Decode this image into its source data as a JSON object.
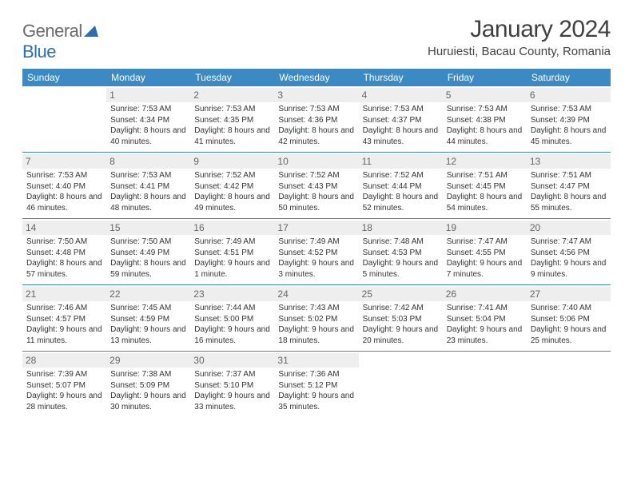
{
  "logo": {
    "part1": "General",
    "part2": "Blue"
  },
  "title": "January 2024",
  "location": "Huruiesti, Bacau County, Romania",
  "colors": {
    "header_bg": "#3b8ac4",
    "header_text": "#ffffff",
    "daynum_bg": "#eeeeee",
    "daynum_text": "#666666",
    "rule": "#3b8ac4"
  },
  "weekdays": [
    "Sunday",
    "Monday",
    "Tuesday",
    "Wednesday",
    "Thursday",
    "Friday",
    "Saturday"
  ],
  "weeks": [
    [
      null,
      {
        "n": "1",
        "sr": "7:53 AM",
        "ss": "4:34 PM",
        "dl": "8 hours and 40 minutes."
      },
      {
        "n": "2",
        "sr": "7:53 AM",
        "ss": "4:35 PM",
        "dl": "8 hours and 41 minutes."
      },
      {
        "n": "3",
        "sr": "7:53 AM",
        "ss": "4:36 PM",
        "dl": "8 hours and 42 minutes."
      },
      {
        "n": "4",
        "sr": "7:53 AM",
        "ss": "4:37 PM",
        "dl": "8 hours and 43 minutes."
      },
      {
        "n": "5",
        "sr": "7:53 AM",
        "ss": "4:38 PM",
        "dl": "8 hours and 44 minutes."
      },
      {
        "n": "6",
        "sr": "7:53 AM",
        "ss": "4:39 PM",
        "dl": "8 hours and 45 minutes."
      }
    ],
    [
      {
        "n": "7",
        "sr": "7:53 AM",
        "ss": "4:40 PM",
        "dl": "8 hours and 46 minutes."
      },
      {
        "n": "8",
        "sr": "7:53 AM",
        "ss": "4:41 PM",
        "dl": "8 hours and 48 minutes."
      },
      {
        "n": "9",
        "sr": "7:52 AM",
        "ss": "4:42 PM",
        "dl": "8 hours and 49 minutes."
      },
      {
        "n": "10",
        "sr": "7:52 AM",
        "ss": "4:43 PM",
        "dl": "8 hours and 50 minutes."
      },
      {
        "n": "11",
        "sr": "7:52 AM",
        "ss": "4:44 PM",
        "dl": "8 hours and 52 minutes."
      },
      {
        "n": "12",
        "sr": "7:51 AM",
        "ss": "4:45 PM",
        "dl": "8 hours and 54 minutes."
      },
      {
        "n": "13",
        "sr": "7:51 AM",
        "ss": "4:47 PM",
        "dl": "8 hours and 55 minutes."
      }
    ],
    [
      {
        "n": "14",
        "sr": "7:50 AM",
        "ss": "4:48 PM",
        "dl": "8 hours and 57 minutes."
      },
      {
        "n": "15",
        "sr": "7:50 AM",
        "ss": "4:49 PM",
        "dl": "8 hours and 59 minutes."
      },
      {
        "n": "16",
        "sr": "7:49 AM",
        "ss": "4:51 PM",
        "dl": "9 hours and 1 minute."
      },
      {
        "n": "17",
        "sr": "7:49 AM",
        "ss": "4:52 PM",
        "dl": "9 hours and 3 minutes."
      },
      {
        "n": "18",
        "sr": "7:48 AM",
        "ss": "4:53 PM",
        "dl": "9 hours and 5 minutes."
      },
      {
        "n": "19",
        "sr": "7:47 AM",
        "ss": "4:55 PM",
        "dl": "9 hours and 7 minutes."
      },
      {
        "n": "20",
        "sr": "7:47 AM",
        "ss": "4:56 PM",
        "dl": "9 hours and 9 minutes."
      }
    ],
    [
      {
        "n": "21",
        "sr": "7:46 AM",
        "ss": "4:57 PM",
        "dl": "9 hours and 11 minutes."
      },
      {
        "n": "22",
        "sr": "7:45 AM",
        "ss": "4:59 PM",
        "dl": "9 hours and 13 minutes."
      },
      {
        "n": "23",
        "sr": "7:44 AM",
        "ss": "5:00 PM",
        "dl": "9 hours and 16 minutes."
      },
      {
        "n": "24",
        "sr": "7:43 AM",
        "ss": "5:02 PM",
        "dl": "9 hours and 18 minutes."
      },
      {
        "n": "25",
        "sr": "7:42 AM",
        "ss": "5:03 PM",
        "dl": "9 hours and 20 minutes."
      },
      {
        "n": "26",
        "sr": "7:41 AM",
        "ss": "5:04 PM",
        "dl": "9 hours and 23 minutes."
      },
      {
        "n": "27",
        "sr": "7:40 AM",
        "ss": "5:06 PM",
        "dl": "9 hours and 25 minutes."
      }
    ],
    [
      {
        "n": "28",
        "sr": "7:39 AM",
        "ss": "5:07 PM",
        "dl": "9 hours and 28 minutes."
      },
      {
        "n": "29",
        "sr": "7:38 AM",
        "ss": "5:09 PM",
        "dl": "9 hours and 30 minutes."
      },
      {
        "n": "30",
        "sr": "7:37 AM",
        "ss": "5:10 PM",
        "dl": "9 hours and 33 minutes."
      },
      {
        "n": "31",
        "sr": "7:36 AM",
        "ss": "5:12 PM",
        "dl": "9 hours and 35 minutes."
      },
      null,
      null,
      null
    ]
  ]
}
